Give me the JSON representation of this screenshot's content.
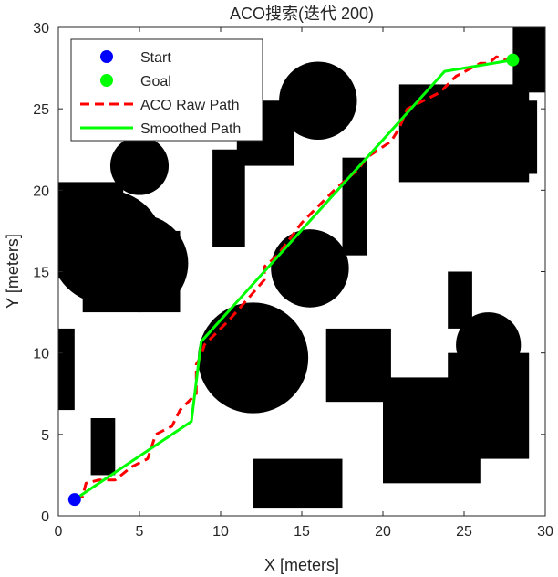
{
  "chart_data": {
    "type": "line",
    "title": "ACO搜索(迭代 200)",
    "xlabel": "X [meters]",
    "ylabel": "Y [meters]",
    "xlim": [
      0,
      30
    ],
    "ylim": [
      0,
      30
    ],
    "xticks": [
      0,
      5,
      10,
      15,
      20,
      25,
      30
    ],
    "yticks": [
      0,
      5,
      10,
      15,
      20,
      25,
      30
    ],
    "grid": false,
    "legend_position": "top-left",
    "obstacle_color": "#000000",
    "obstacles": [
      {
        "shape": "rect",
        "x": 0,
        "y": 6.5,
        "w": 1,
        "h": 5
      },
      {
        "shape": "rect",
        "x": 2,
        "y": 2.5,
        "w": 1.5,
        "h": 3.5
      },
      {
        "shape": "rect",
        "x": 12,
        "y": 0.5,
        "w": 5.5,
        "h": 3
      },
      {
        "shape": "rect",
        "x": 9.5,
        "y": 16.5,
        "w": 2,
        "h": 6
      },
      {
        "shape": "rect",
        "x": 17.5,
        "y": 16,
        "w": 1.5,
        "h": 6
      },
      {
        "shape": "rect",
        "x": 24,
        "y": 11.5,
        "w": 1.5,
        "h": 3.5
      },
      {
        "shape": "rect",
        "x": 11,
        "y": 21.5,
        "w": 3.5,
        "h": 4
      },
      {
        "shape": "rect",
        "x": 21,
        "y": 20.5,
        "w": 8,
        "h": 6
      },
      {
        "shape": "rect",
        "x": 27,
        "y": 21,
        "w": 2.5,
        "h": 4.5
      },
      {
        "shape": "rect",
        "x": 28,
        "y": 26,
        "w": 2,
        "h": 4
      },
      {
        "shape": "rect",
        "x": 16.5,
        "y": 7,
        "w": 4,
        "h": 4.5
      },
      {
        "shape": "rect",
        "x": 20,
        "y": 2,
        "w": 6,
        "h": 6.5
      },
      {
        "shape": "rect",
        "x": 24,
        "y": 3.5,
        "w": 5,
        "h": 6.5
      },
      {
        "shape": "circle",
        "cx": 3,
        "cy": 16.5,
        "r": 3.5
      },
      {
        "shape": "rect",
        "x": 0,
        "y": 15.5,
        "w": 4,
        "h": 5
      },
      {
        "shape": "rect",
        "x": 1.5,
        "y": 12.5,
        "w": 6,
        "h": 5
      },
      {
        "shape": "circle",
        "cx": 5,
        "cy": 15.5,
        "r": 3
      },
      {
        "shape": "circle",
        "cx": 5,
        "cy": 21.5,
        "r": 1.8
      },
      {
        "shape": "circle",
        "cx": 12,
        "cy": 9.7,
        "r": 3.4
      },
      {
        "shape": "circle",
        "cx": 15.5,
        "cy": 15.2,
        "r": 2.4
      },
      {
        "shape": "circle",
        "cx": 16,
        "cy": 25.5,
        "r": 2.4
      },
      {
        "shape": "circle",
        "cx": 26.5,
        "cy": 10.5,
        "r": 2
      }
    ],
    "series": [
      {
        "name": "Start",
        "marker": "circle",
        "color": "#0000ff",
        "x": [
          1
        ],
        "y": [
          1
        ]
      },
      {
        "name": "Goal",
        "marker": "circle",
        "color": "#00ff00",
        "x": [
          28
        ],
        "y": [
          28
        ]
      },
      {
        "name": "ACO Raw Path",
        "style": "dashed",
        "color": "#ff0000",
        "x": [
          1,
          1.5,
          1.7,
          2.5,
          3.5,
          4.5,
          5.5,
          6,
          7,
          7.5,
          8.5,
          8.5,
          8.8,
          9,
          9.3,
          10.5,
          12,
          12.7,
          12.7,
          13.5,
          15,
          15.5,
          17,
          18.5,
          19,
          20.5,
          21,
          21.5,
          23.5,
          24.5,
          26,
          26.5,
          27,
          27.5,
          28
        ],
        "y": [
          1,
          1.2,
          2,
          2.2,
          2.2,
          3,
          3.5,
          5,
          5.5,
          6.5,
          7.5,
          9.3,
          9.8,
          10.5,
          10.8,
          12,
          13.7,
          14.5,
          15.3,
          16,
          18,
          18.5,
          20,
          21.3,
          22,
          23,
          23.8,
          25,
          26,
          27,
          27.8,
          27.8,
          28.2,
          28,
          28
        ]
      },
      {
        "name": "Smoothed Path",
        "style": "solid",
        "color": "#00ff00",
        "x": [
          1,
          8.2,
          8.8,
          23.8,
          28
        ],
        "y": [
          1,
          5.8,
          10.7,
          27.3,
          28
        ]
      }
    ]
  }
}
